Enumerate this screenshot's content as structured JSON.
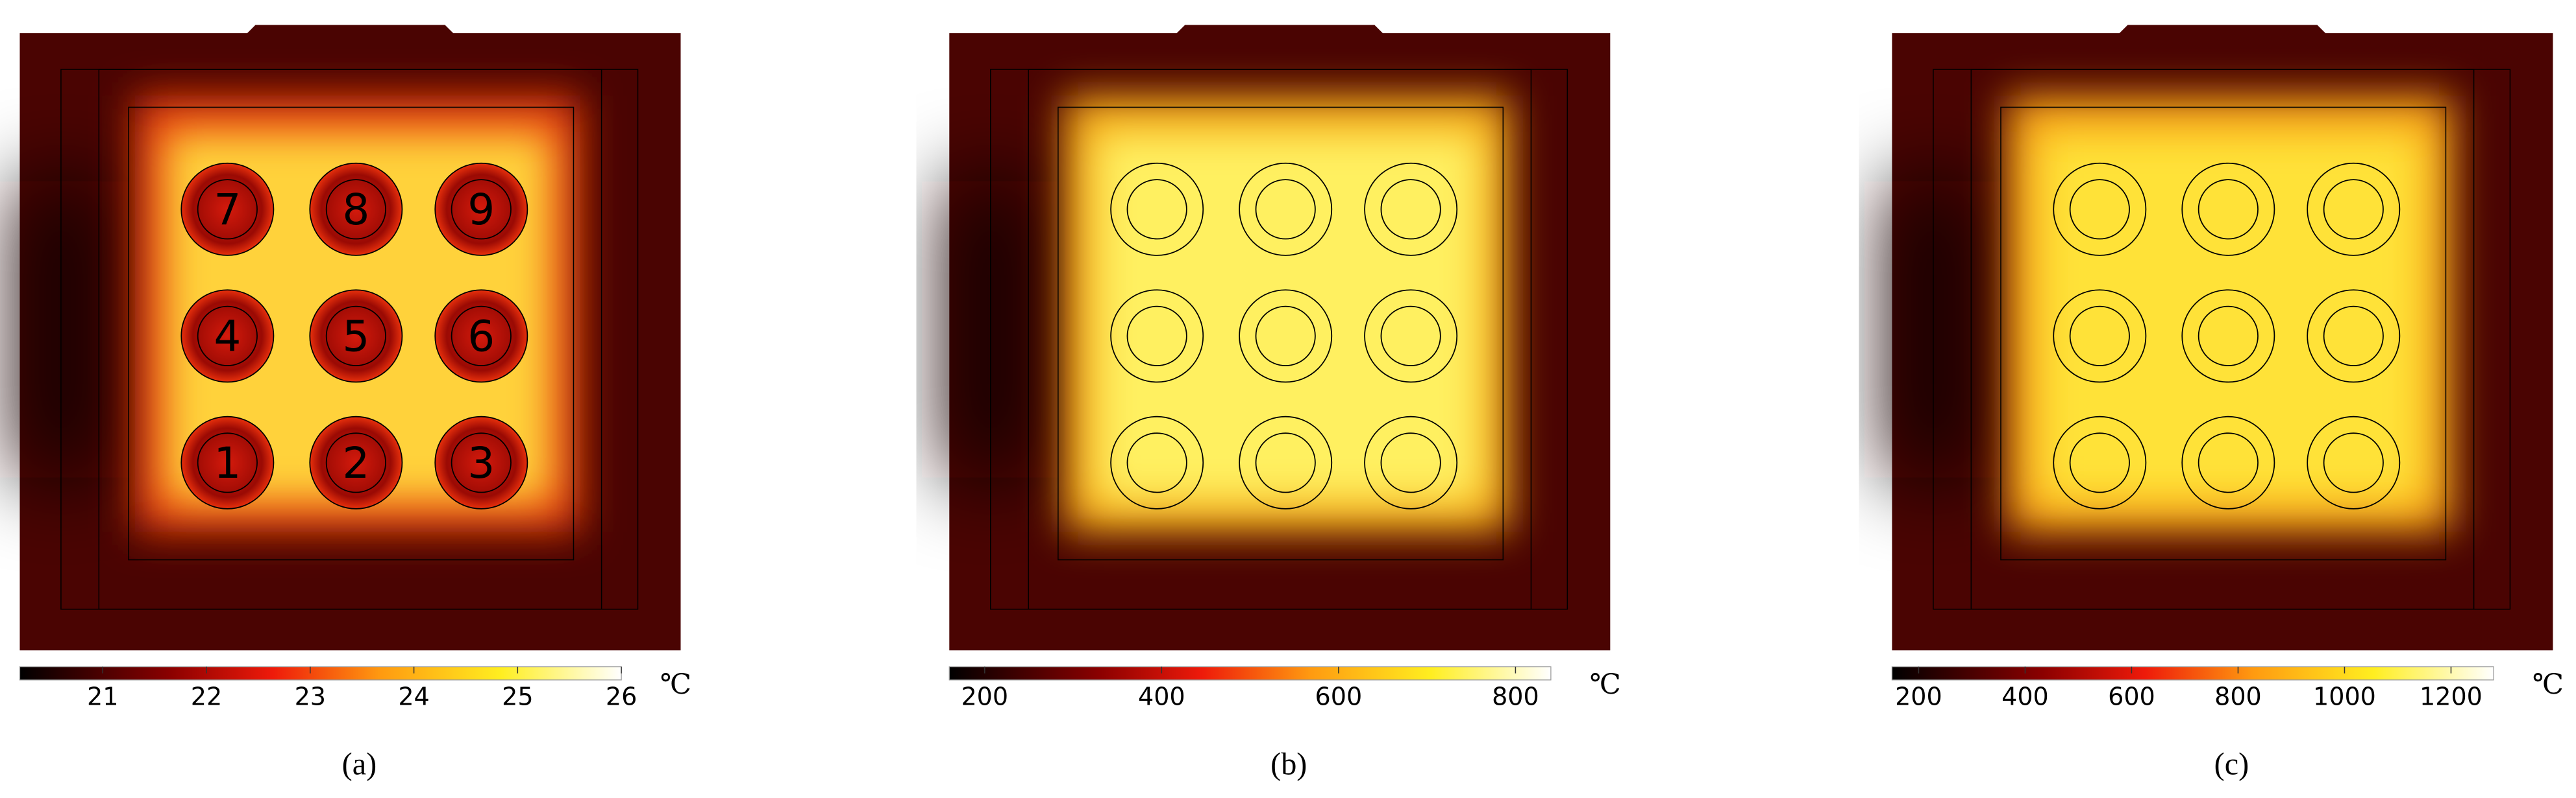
{
  "panels": [
    {
      "label": "(a)",
      "cells": [
        "7",
        "8",
        "9",
        "4",
        "5",
        "6",
        "1",
        "2",
        "3"
      ],
      "colorbar": {
        "range": [
          20.2,
          26
        ],
        "ticks": [
          21,
          22,
          23,
          24,
          25,
          26
        ],
        "unit": "℃"
      }
    },
    {
      "label": "(b)",
      "colorbar": {
        "range": [
          160,
          840
        ],
        "ticks": [
          200,
          400,
          600,
          800
        ],
        "unit": "℃"
      }
    },
    {
      "label": "(c)",
      "colorbar": {
        "range": [
          150,
          1280
        ],
        "ticks": [
          200,
          400,
          600,
          800,
          1000,
          1200
        ],
        "unit": "℃"
      }
    }
  ]
}
